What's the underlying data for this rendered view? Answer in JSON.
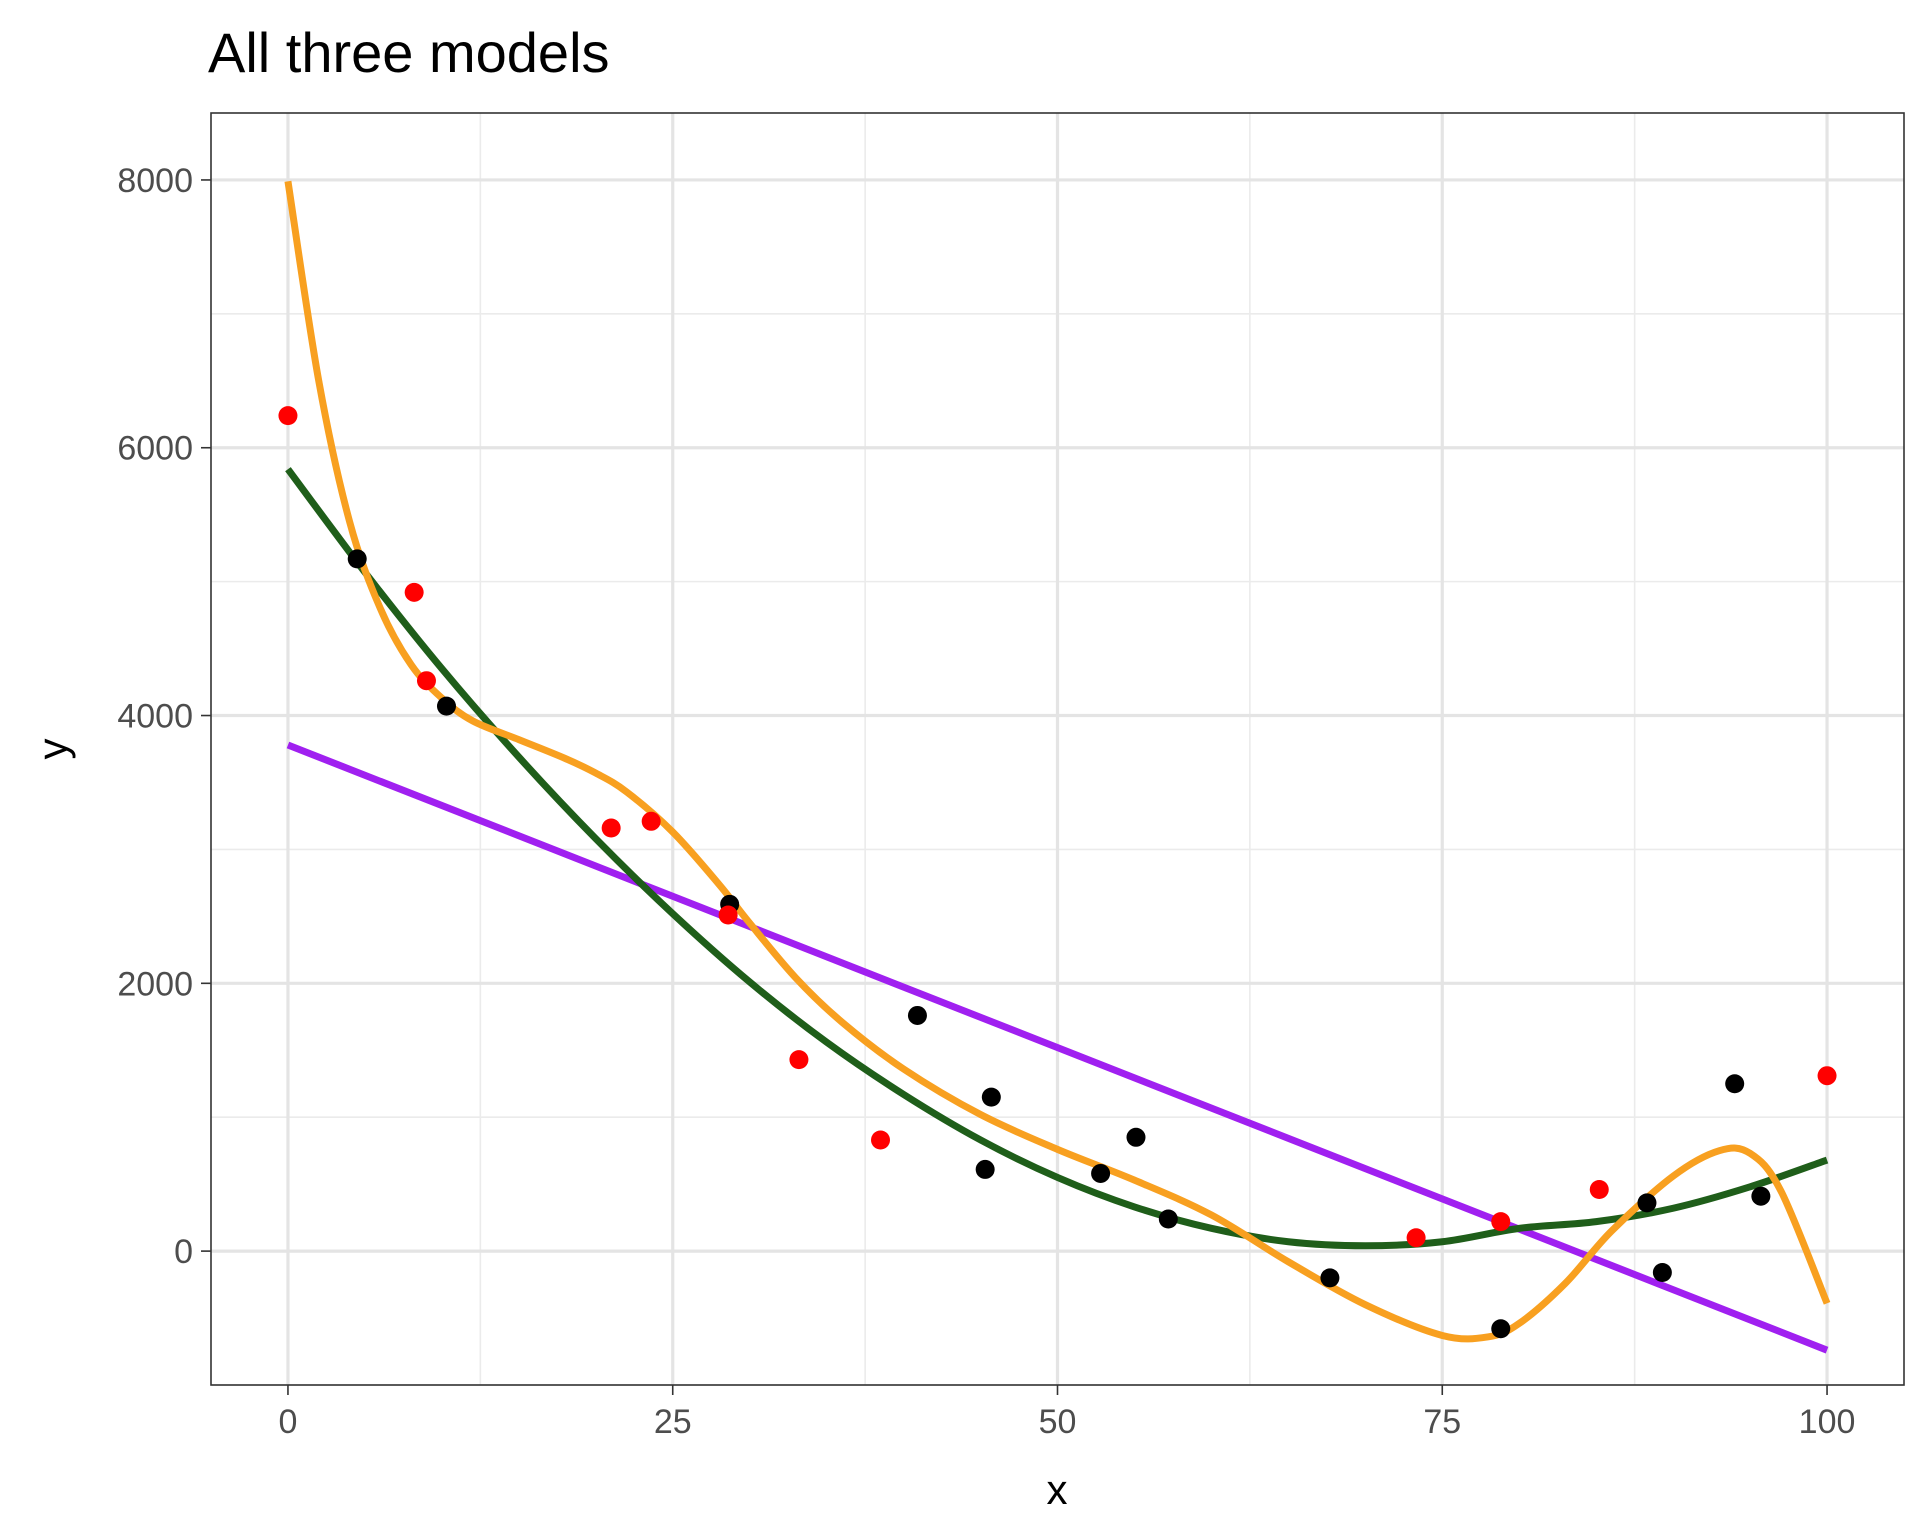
{
  "chart_data": {
    "type": "scatter",
    "title": "All three models",
    "xlabel": "x",
    "ylabel": "y",
    "xlim": [
      -5,
      105
    ],
    "ylim": [
      -1000,
      8500
    ],
    "x_ticks": [
      0,
      25,
      50,
      75,
      100
    ],
    "y_ticks": [
      0,
      2000,
      4000,
      6000,
      8000
    ],
    "x_tick_labels": [
      "0",
      "25",
      "50",
      "75",
      "100"
    ],
    "y_tick_labels": [
      "0",
      "2000",
      "4000",
      "6000",
      "8000"
    ],
    "grid": true,
    "legend": "none",
    "points": [
      {
        "x": 0.0,
        "y": 6240,
        "color": "#ff0000"
      },
      {
        "x": 4.5,
        "y": 5170,
        "color": "#000000"
      },
      {
        "x": 8.2,
        "y": 4920,
        "color": "#ff0000"
      },
      {
        "x": 9.0,
        "y": 4260,
        "color": "#ff0000"
      },
      {
        "x": 10.3,
        "y": 4070,
        "color": "#000000"
      },
      {
        "x": 21.0,
        "y": 3160,
        "color": "#ff0000"
      },
      {
        "x": 23.6,
        "y": 3210,
        "color": "#ff0000"
      },
      {
        "x": 28.7,
        "y": 2590,
        "color": "#000000"
      },
      {
        "x": 28.6,
        "y": 2510,
        "color": "#ff0000"
      },
      {
        "x": 33.2,
        "y": 1430,
        "color": "#ff0000"
      },
      {
        "x": 38.5,
        "y": 830,
        "color": "#ff0000"
      },
      {
        "x": 40.9,
        "y": 1760,
        "color": "#000000"
      },
      {
        "x": 45.3,
        "y": 610,
        "color": "#000000"
      },
      {
        "x": 45.7,
        "y": 1150,
        "color": "#000000"
      },
      {
        "x": 52.8,
        "y": 580,
        "color": "#000000"
      },
      {
        "x": 55.1,
        "y": 850,
        "color": "#000000"
      },
      {
        "x": 57.2,
        "y": 240,
        "color": "#000000"
      },
      {
        "x": 67.7,
        "y": -200,
        "color": "#000000"
      },
      {
        "x": 73.3,
        "y": 100,
        "color": "#ff0000"
      },
      {
        "x": 78.8,
        "y": 220,
        "color": "#ff0000"
      },
      {
        "x": 78.8,
        "y": -580,
        "color": "#000000"
      },
      {
        "x": 85.2,
        "y": 460,
        "color": "#ff0000"
      },
      {
        "x": 88.3,
        "y": 360,
        "color": "#000000"
      },
      {
        "x": 89.3,
        "y": -160,
        "color": "#000000"
      },
      {
        "x": 94.0,
        "y": 1250,
        "color": "#000000"
      },
      {
        "x": 95.7,
        "y": 410,
        "color": "#000000"
      },
      {
        "x": 100.0,
        "y": 1310,
        "color": "#ff0000"
      }
    ],
    "series": [
      {
        "type": "line",
        "color": "#a020f0",
        "x": [
          0,
          100
        ],
        "y": [
          3780,
          -740
        ]
      },
      {
        "type": "line",
        "color": "#1f5e1a",
        "x": [
          0,
          5,
          10,
          15,
          20,
          25,
          30,
          35,
          40,
          45,
          50,
          55,
          60,
          65,
          70,
          75,
          80,
          85,
          90,
          95,
          100
        ],
        "y": [
          5840,
          5070,
          4350,
          3690,
          3080,
          2520,
          2010,
          1560,
          1170,
          830,
          550,
          330,
          170,
          70,
          40,
          70,
          170,
          220,
          320,
          480,
          680
        ]
      },
      {
        "type": "line",
        "color": "#f8a020",
        "x": [
          0,
          2,
          4,
          6,
          8,
          10,
          12,
          15,
          18,
          20,
          22,
          25,
          28,
          30,
          33,
          36,
          40,
          45,
          50,
          55,
          60,
          65,
          70,
          75,
          78,
          80,
          83,
          86,
          90,
          93,
          95,
          97,
          100
        ],
        "y": [
          7990,
          6500,
          5450,
          4800,
          4380,
          4130,
          3960,
          3820,
          3680,
          3570,
          3430,
          3130,
          2740,
          2450,
          2040,
          1710,
          1360,
          1020,
          760,
          530,
          270,
          -80,
          -400,
          -630,
          -640,
          -540,
          -240,
          150,
          560,
          750,
          730,
          450,
          -390
        ]
      }
    ]
  }
}
